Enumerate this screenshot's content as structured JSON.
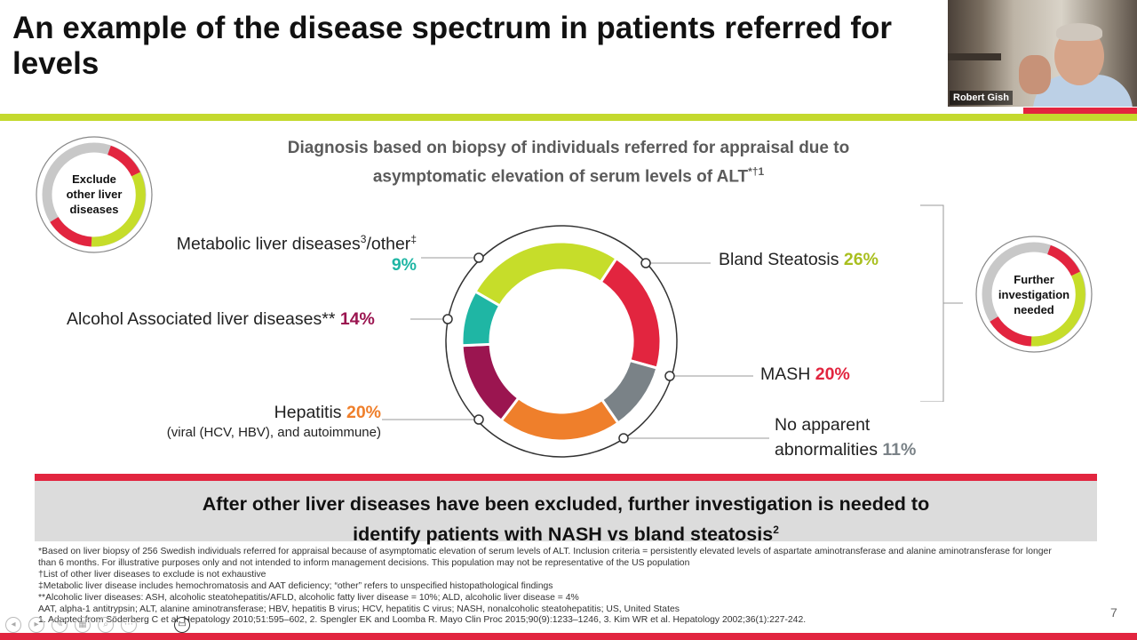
{
  "slide": {
    "title_line1": "An example of the disease spectrum in patients referred for",
    "title_line2": "levels",
    "subtitle_line1": "Diagnosis based on biopsy of individuals referred for appraisal due to",
    "subtitle_line2_main": "asymptomatic elevation of serum levels of ALT",
    "subtitle_line2_sup": "*†1",
    "page_number": "7"
  },
  "webcam": {
    "participant_name": "Robert Gish"
  },
  "side_donuts": {
    "exclude": {
      "line1": "Exclude",
      "line2": "other liver",
      "line3": "diseases"
    },
    "further": {
      "line1": "Further",
      "line2": "investigation",
      "line3": "needed"
    }
  },
  "categories": {
    "metabolic": {
      "label": "Metabolic liver diseases",
      "sup": "3",
      "suffix": "/other",
      "sup2": "‡",
      "pct": "9%"
    },
    "alcohol": {
      "label": "Alcohol Associated liver diseases** ",
      "pct": "14%"
    },
    "hepatitis": {
      "label": "Hepatitis ",
      "pct": "20%",
      "sub": "(viral (HCV, HBV), and autoimmune)"
    },
    "bland": {
      "label": "Bland Steatosis ",
      "pct": "26%"
    },
    "mash": {
      "label": "MASH ",
      "pct": "20%"
    },
    "noabn": {
      "label_line1": "No apparent",
      "label_line2": "abnormalities ",
      "pct": "11%"
    }
  },
  "colors": {
    "bland": "#c6dd2a",
    "mash": "#e2253f",
    "noabn": "#7a8287",
    "hepatitis": "#ef7f2b",
    "alcohol": "#9b1550",
    "metabolic": "#1fb6a4",
    "green_band": "#c4d92e",
    "red_band": "#e2253f",
    "banner_bg": "#dcdcdc"
  },
  "banner": {
    "line1": "After other liver diseases have been excluded, further investigation is needed to",
    "line2": "identify patients with NASH vs bland steatosis",
    "line2_sup": "2"
  },
  "footnotes": [
    "*Based on liver biopsy of 256 Swedish individuals referred for appraisal because of asymptomatic elevation of serum levels of ALT. Inclusion criteria = persistently elevated levels of aspartate aminotransferase and alanine aminotransferase for longer",
    "than 6 months. For illustrative purposes only and not intended to inform management decisions. This population may not be representative of the US population",
    "†List of other liver diseases to exclude is not exhaustive",
    "‡Metabolic liver disease includes hemochromatosis and AAT deficiency; “other” refers to unspecified histopathological findings",
    "**Alcoholic liver diseases: ASH, alcoholic steatohepatitis/AFLD, alcoholic fatty liver disease = 10%; ALD, alcoholic liver disease = 4%",
    "AAT, alpha-1 antitrypsin; ALT, alanine aminotransferase; HBV, hepatitis B virus; HCV, hepatitis C virus; NASH, nonalcoholic steatohepatitis; US, United States",
    "1. Adapted from Söderberg C et al. Hepatology 2010;51:595–602, 2. Spengler EK and Loomba R. Mayo Clin Proc 2015;90(9):1233–1246, 3. Kim WR et al. Hepatology 2002;36(1):227-242."
  ],
  "chart_data": {
    "type": "pie",
    "title": "Diagnosis based on biopsy of individuals referred for appraisal due to asymptomatic elevation of serum levels of ALT",
    "categories": [
      "Bland Steatosis",
      "MASH",
      "No apparent abnormalities",
      "Hepatitis",
      "Alcohol Associated liver diseases",
      "Metabolic liver diseases/other"
    ],
    "values": [
      26,
      20,
      11,
      20,
      14,
      9
    ],
    "unit": "%"
  }
}
